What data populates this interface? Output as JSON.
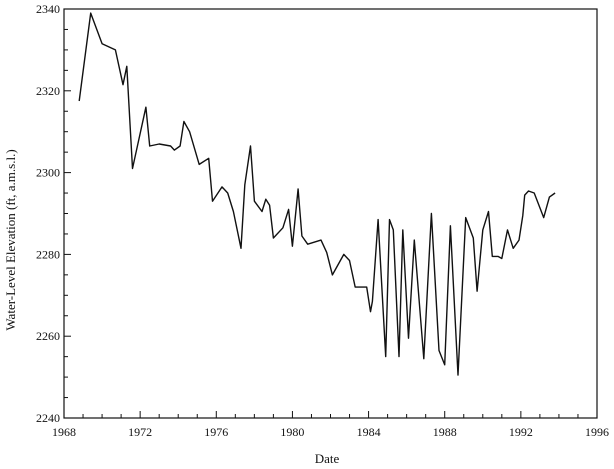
{
  "chart_data": {
    "type": "line",
    "title": "",
    "xlabel": "Date",
    "ylabel": "Water-Level Elevation (ft, a.m.s.l.)",
    "xlim": [
      1968,
      1996
    ],
    "ylim": [
      2240,
      2340
    ],
    "x_ticks": [
      1968,
      1972,
      1976,
      1980,
      1984,
      1988,
      1992,
      1996
    ],
    "y_ticks": [
      2240,
      2260,
      2280,
      2300,
      2320,
      2340
    ],
    "grid": false,
    "series": [
      {
        "x": [
          1968.8,
          1969.4,
          1970.0,
          1970.7,
          1971.1,
          1971.3,
          1971.6,
          1972.3,
          1972.5,
          1973.0,
          1973.6,
          1973.8,
          1974.1,
          1974.3,
          1974.6,
          1975.1,
          1975.6,
          1975.8,
          1976.3,
          1976.6,
          1976.9,
          1977.3,
          1977.5,
          1977.8,
          1978.0,
          1978.4,
          1978.6,
          1978.8,
          1979.0,
          1979.5,
          1979.8,
          1980.0,
          1980.3,
          1980.5,
          1980.8,
          1981.5,
          1981.8,
          1982.1,
          1982.7,
          1983.0,
          1983.3,
          1983.6,
          1983.9,
          1984.1,
          1984.2,
          1984.5,
          1984.9,
          1985.1,
          1985.3,
          1985.6,
          1985.8,
          1986.1,
          1986.4,
          1986.9,
          1987.3,
          1987.7,
          1988.0,
          1988.3,
          1988.7,
          1989.1,
          1989.5,
          1989.7,
          1990.0,
          1990.3,
          1990.5,
          1990.8,
          1991.0,
          1991.3,
          1991.6,
          1991.9,
          1992.1,
          1992.2,
          1992.4,
          1992.7,
          1993.2,
          1993.5,
          1993.8
        ],
        "y": [
          2317.5,
          2339,
          2331.5,
          2330,
          2321.5,
          2326,
          2301,
          2316,
          2306.5,
          2307,
          2306.5,
          2305.5,
          2306.5,
          2312.5,
          2310,
          2302,
          2303.5,
          2293,
          2296.5,
          2295,
          2290.5,
          2281.5,
          2297,
          2306.5,
          2293,
          2290.5,
          2293.5,
          2292,
          2284,
          2286.5,
          2291,
          2282,
          2296,
          2284.5,
          2282.5,
          2283.5,
          2280.5,
          2275,
          2280,
          2278.5,
          2272,
          2272,
          2272,
          2266,
          2268.5,
          2288.5,
          2255,
          2288.5,
          2286,
          2255,
          2286,
          2259.5,
          2283.5,
          2254.5,
          2290,
          2256.5,
          2253,
          2287,
          2250.5,
          2289,
          2284,
          2271,
          2286,
          2290.5,
          2279.5,
          2279.5,
          2279,
          2286,
          2281.5,
          2283.5,
          2289.5,
          2294.5,
          2295.5,
          2295,
          2289,
          2294,
          2295
        ]
      }
    ]
  }
}
